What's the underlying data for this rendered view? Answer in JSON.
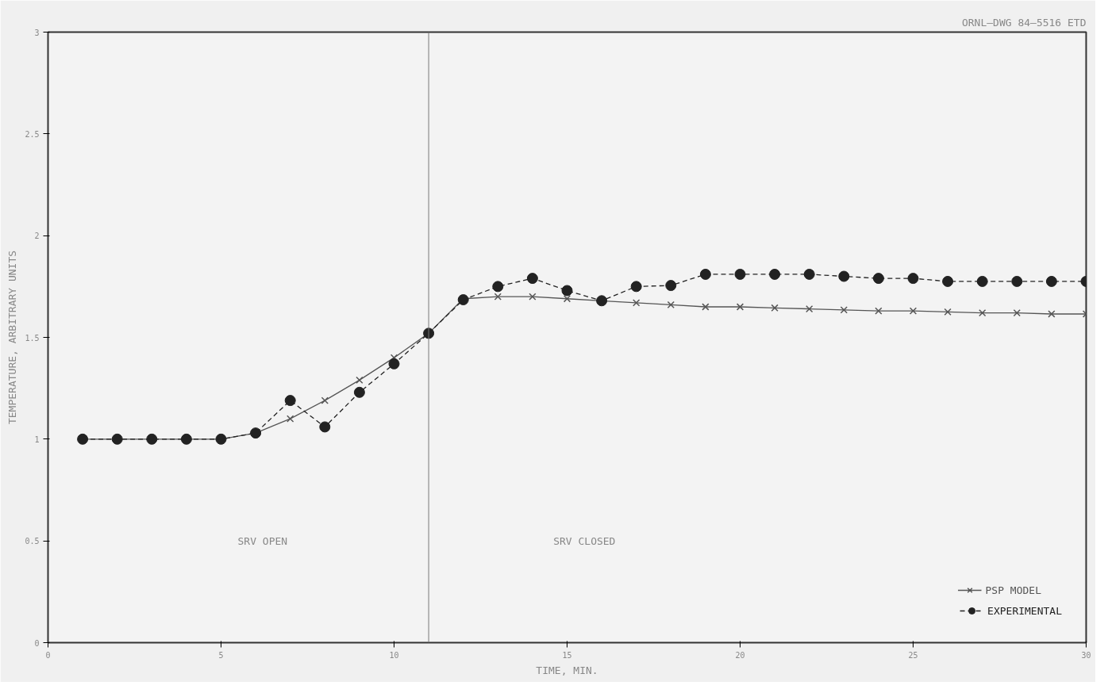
{
  "chart_data": {
    "type": "line",
    "xlabel": "TIME, MIN.",
    "ylabel": "TEMPERATURE, ARBITRARY UNITS",
    "x": [
      1,
      2,
      3,
      4,
      5,
      6,
      7,
      8,
      9,
      10,
      11,
      12,
      13,
      14,
      15,
      16,
      17,
      18,
      19,
      20,
      21,
      22,
      23,
      24,
      25,
      26,
      27,
      28,
      29,
      30
    ],
    "series": [
      {
        "name": "PSP MODEL",
        "color": "#555555",
        "marker": "cross",
        "line_style": "solid",
        "values": [
          1.0,
          1.0,
          1.0,
          1.0,
          1.0,
          1.03,
          1.1,
          1.19,
          1.29,
          1.4,
          1.52,
          1.69,
          1.7,
          1.7,
          1.69,
          1.68,
          1.67,
          1.66,
          1.65,
          1.65,
          1.645,
          1.64,
          1.635,
          1.63,
          1.63,
          1.625,
          1.62,
          1.62,
          1.615,
          1.615
        ]
      },
      {
        "name": "EXPERIMENTAL",
        "color": "#222222",
        "marker": "circle",
        "line_style": "dashed",
        "values": [
          1.0,
          1.0,
          1.0,
          1.0,
          1.0,
          1.03,
          1.19,
          1.06,
          1.23,
          1.37,
          1.52,
          1.685,
          1.75,
          1.79,
          1.73,
          1.68,
          1.75,
          1.755,
          1.81,
          1.81,
          1.81,
          1.81,
          1.8,
          1.79,
          1.79,
          1.775,
          1.775,
          1.775,
          1.775,
          1.775
        ]
      }
    ],
    "xlim": [
      0,
      30
    ],
    "ylim": [
      0,
      3
    ],
    "xticks": [
      0,
      5,
      10,
      15,
      20,
      25,
      30
    ],
    "yticks": [
      0,
      0.5,
      1,
      1.5,
      2,
      2.5,
      3
    ],
    "ref_lines": [
      {
        "axis": "x",
        "value": 11,
        "color": "#777777",
        "line_style": "solid"
      }
    ],
    "annotations": [
      "SRV OPEN",
      "SRV CLOSED",
      "ORNL–DWG 84–5516 ETD"
    ],
    "grid": false,
    "legend": "bottom right"
  }
}
